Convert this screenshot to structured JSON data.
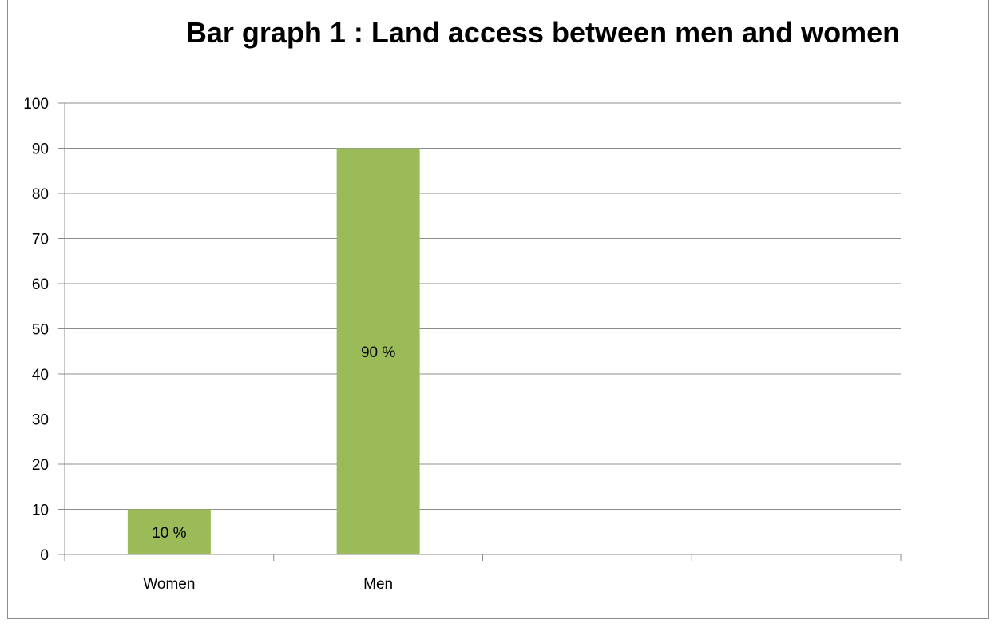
{
  "chart_data": {
    "type": "bar",
    "title": "Bar graph 1 : Land access between men and women",
    "categories": [
      "Women",
      "Men",
      "",
      ""
    ],
    "values": [
      10,
      90,
      null,
      null
    ],
    "data_labels": [
      "10 %",
      "90 %",
      "",
      ""
    ],
    "y_ticks": [
      "0",
      "10",
      "20",
      "30",
      "40",
      "50",
      "60",
      "70",
      "80",
      "90",
      "100"
    ],
    "ylim": [
      0,
      100
    ],
    "y_step": 10,
    "xlabel": "",
    "ylabel": "",
    "grid": true,
    "bar_color": "#9BBB59",
    "grid_color": "#8c8c8c"
  }
}
